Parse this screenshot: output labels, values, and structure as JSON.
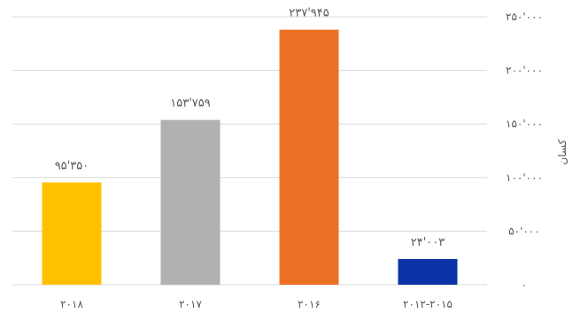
{
  "chart_data": {
    "type": "bar",
    "categories": [
      "۲۰۱۸",
      "۲۰۱۷",
      "۲۰۱۶",
      "۲۰۱۲-۲۰۱۵"
    ],
    "values": [
      95350,
      153759,
      237945,
      24003
    ],
    "value_labels": [
      "۹۵'۳۵۰",
      "۱۵۳'۷۵۹",
      "۲۳۷'۹۴۵",
      "۲۴'۰۰۳"
    ],
    "colors": [
      "#ffc000",
      "#b1b1b4",
      "#ed7125",
      "#0b33a7"
    ],
    "ylabel": "کسان",
    "ylim": [
      0,
      250000
    ],
    "y_ticks": [
      0,
      50000,
      100000,
      150000,
      200000,
      250000
    ],
    "y_tick_labels": [
      "۰",
      "۵۰'۰۰۰",
      "۱۰۰'۰۰۰",
      "۱۵۰'۰۰۰",
      "۲۰۰'۰۰۰",
      "۲۵۰'۰۰۰"
    ],
    "y_axis_position": "right",
    "grid": true,
    "legend": "none"
  }
}
